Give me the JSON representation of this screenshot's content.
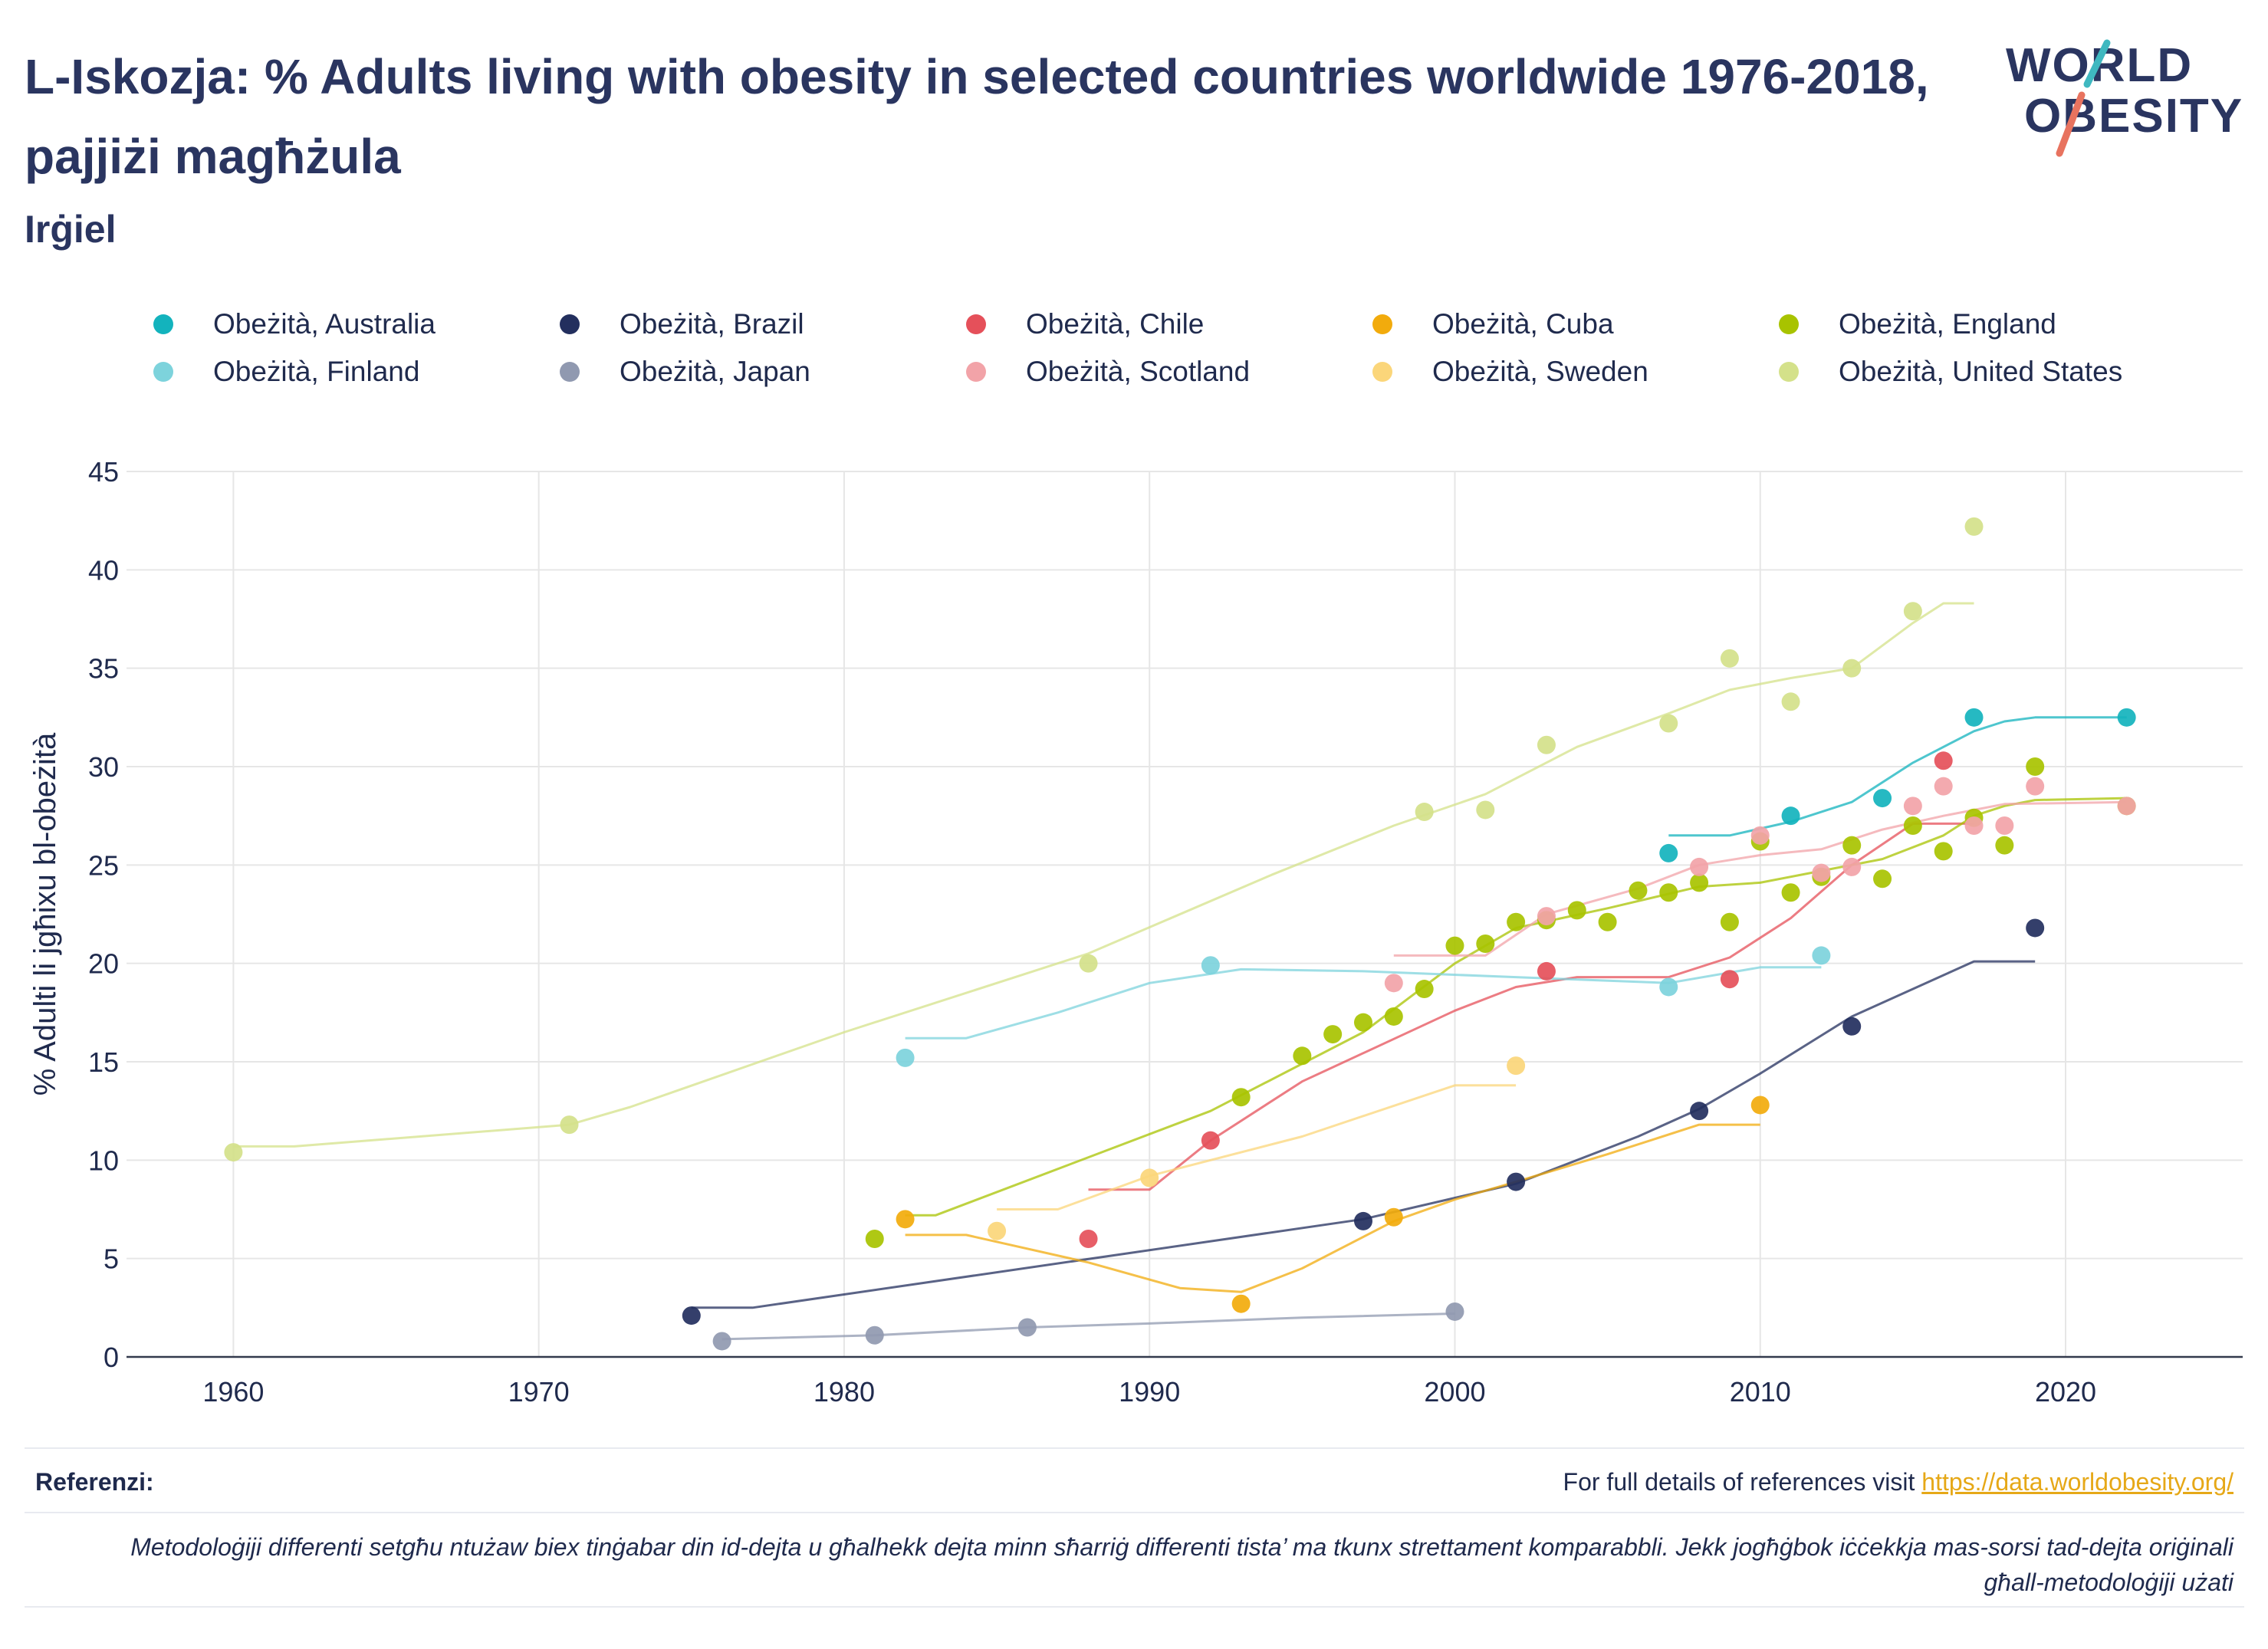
{
  "header": {
    "title": "L-Iskozja: % Adults living with obesity in selected countries worldwide 1976-2018, pajjiżi magħżula",
    "subtitle": "Irġiel"
  },
  "logo": {
    "line1": "WORLD",
    "line2": "OBESITY",
    "accent1": "#3fb8c0",
    "accent2": "#e8735f"
  },
  "footer": {
    "references_label": "Referenzi:",
    "references_text": "For full details of references visit ",
    "references_link": "https://data.worldobesity.org/",
    "methodology": "Metodoloġiji differenti setgħu ntużaw biex tinġabar din id-dejta u għalhekk dejta minn sħarriġ differenti tista’ ma tkunx strettament komparabbli. Jekk jogħġbok iċċekkja mas-sorsi tad-dejta oriġinali għall-metodoloġiji użati"
  },
  "chart_data": {
    "type": "scatter",
    "ylabel": "% Adulti li jgħixu bl-obeżità",
    "xlabel": "",
    "xlim": [
      1956.5,
      2025.8
    ],
    "ylim": [
      0,
      45
    ],
    "x_ticks": [
      1960,
      1970,
      1980,
      1990,
      2000,
      2010,
      2020
    ],
    "y_ticks": [
      0,
      5,
      10,
      15,
      20,
      25,
      30,
      35,
      40,
      45
    ],
    "grid": true,
    "legend_position": "top",
    "series": [
      {
        "name": "Obeżità, Australia",
        "color": "#13b3bd",
        "points": [
          [
            2007,
            25.6
          ],
          [
            2011,
            27.5
          ],
          [
            2014,
            28.4
          ],
          [
            2017,
            32.5
          ],
          [
            2022,
            32.5
          ]
        ],
        "trend": [
          [
            2007,
            26.5
          ],
          [
            2009,
            26.5
          ],
          [
            2011,
            27.2
          ],
          [
            2013,
            28.2
          ],
          [
            2015,
            30.2
          ],
          [
            2017,
            31.8
          ],
          [
            2018,
            32.3
          ],
          [
            2019,
            32.5
          ],
          [
            2022,
            32.5
          ]
        ]
      },
      {
        "name": "Obeżità, Brazil",
        "color": "#232f5e",
        "points": [
          [
            1975,
            2.1
          ],
          [
            1997,
            6.9
          ],
          [
            2002,
            8.9
          ],
          [
            2008,
            12.5
          ],
          [
            2013,
            16.8
          ],
          [
            2019,
            21.8
          ]
        ],
        "trend": [
          [
            1975,
            2.5
          ],
          [
            1977,
            2.5
          ],
          [
            1997,
            7.0
          ],
          [
            2002,
            8.8
          ],
          [
            2006,
            11.2
          ],
          [
            2008,
            12.6
          ],
          [
            2010,
            14.4
          ],
          [
            2013,
            17.3
          ],
          [
            2017,
            20.1
          ],
          [
            2019,
            20.1
          ]
        ]
      },
      {
        "name": "Obeżità, Chile",
        "color": "#e5505a",
        "points": [
          [
            1988,
            6.0
          ],
          [
            1992,
            11.0
          ],
          [
            2003,
            19.6
          ],
          [
            2009,
            19.2
          ],
          [
            2016,
            30.3
          ]
        ],
        "trend": [
          [
            1988,
            8.5
          ],
          [
            1990,
            8.5
          ],
          [
            1992,
            11.0
          ],
          [
            1995,
            14.0
          ],
          [
            2000,
            17.6
          ],
          [
            2002,
            18.8
          ],
          [
            2004,
            19.3
          ],
          [
            2007,
            19.3
          ],
          [
            2009,
            20.3
          ],
          [
            2011,
            22.3
          ],
          [
            2013,
            25.0
          ],
          [
            2015,
            27.1
          ],
          [
            2017,
            27.1
          ]
        ]
      },
      {
        "name": "Obeżità, Cuba",
        "color": "#f2ab0c",
        "points": [
          [
            1982,
            7.0
          ],
          [
            1993,
            2.7
          ],
          [
            1998,
            7.1
          ],
          [
            2010,
            12.8
          ]
        ],
        "trend": [
          [
            1982,
            6.2
          ],
          [
            1984,
            6.2
          ],
          [
            1988,
            4.8
          ],
          [
            1991,
            3.5
          ],
          [
            1993,
            3.3
          ],
          [
            1995,
            4.5
          ],
          [
            1998,
            6.9
          ],
          [
            2000,
            8.0
          ],
          [
            2002,
            8.9
          ],
          [
            2005,
            10.3
          ],
          [
            2008,
            11.8
          ],
          [
            2010,
            11.8
          ]
        ]
      },
      {
        "name": "Obeżità, England",
        "color": "#a8c300",
        "points": [
          [
            1981,
            6.0
          ],
          [
            1993,
            13.2
          ],
          [
            1995,
            15.3
          ],
          [
            1996,
            16.4
          ],
          [
            1997,
            17.0
          ],
          [
            1998,
            17.3
          ],
          [
            1999,
            18.7
          ],
          [
            2000,
            20.9
          ],
          [
            2001,
            21.0
          ],
          [
            2002,
            22.1
          ],
          [
            2003,
            22.2
          ],
          [
            2004,
            22.7
          ],
          [
            2005,
            22.1
          ],
          [
            2006,
            23.7
          ],
          [
            2007,
            23.6
          ],
          [
            2008,
            24.1
          ],
          [
            2009,
            22.1
          ],
          [
            2010,
            26.2
          ],
          [
            2011,
            23.6
          ],
          [
            2012,
            24.4
          ],
          [
            2013,
            26.0
          ],
          [
            2014,
            24.3
          ],
          [
            2015,
            27.0
          ],
          [
            2016,
            25.7
          ],
          [
            2017,
            27.4
          ],
          [
            2018,
            26.0
          ],
          [
            2019,
            30.0
          ],
          [
            2022,
            28.0
          ]
        ],
        "trend": [
          [
            1982,
            7.2
          ],
          [
            1983,
            7.2
          ],
          [
            1992,
            12.5
          ],
          [
            1997,
            16.5
          ],
          [
            2000,
            20.0
          ],
          [
            2002,
            21.8
          ],
          [
            2005,
            22.8
          ],
          [
            2008,
            23.9
          ],
          [
            2010,
            24.1
          ],
          [
            2012,
            24.7
          ],
          [
            2014,
            25.3
          ],
          [
            2016,
            26.5
          ],
          [
            2017,
            27.5
          ],
          [
            2018,
            28.0
          ],
          [
            2019,
            28.3
          ],
          [
            2022,
            28.4
          ]
        ]
      },
      {
        "name": "Obeżità, Finland",
        "color": "#7dd3dc",
        "points": [
          [
            1982,
            15.2
          ],
          [
            1992,
            19.9
          ],
          [
            2007,
            18.8
          ],
          [
            2012,
            20.4
          ]
        ],
        "trend": [
          [
            1982,
            16.2
          ],
          [
            1984,
            16.2
          ],
          [
            1987,
            17.5
          ],
          [
            1990,
            19.0
          ],
          [
            1993,
            19.7
          ],
          [
            1997,
            19.6
          ],
          [
            2002,
            19.3
          ],
          [
            2007,
            19.0
          ],
          [
            2010,
            19.8
          ],
          [
            2012,
            19.8
          ]
        ]
      },
      {
        "name": "Obeżità, Japan",
        "color": "#9099b0",
        "points": [
          [
            1976,
            0.8
          ],
          [
            1981,
            1.1
          ],
          [
            1986,
            1.5
          ],
          [
            2000,
            2.3
          ]
        ],
        "trend": [
          [
            1976,
            0.9
          ],
          [
            1981,
            1.1
          ],
          [
            1986,
            1.5
          ],
          [
            1990,
            1.7
          ],
          [
            1995,
            2.0
          ],
          [
            2000,
            2.2
          ]
        ]
      },
      {
        "name": "Obeżità, Scotland",
        "color": "#f2a3a8",
        "points": [
          [
            1998,
            19.0
          ],
          [
            2003,
            22.4
          ],
          [
            2008,
            24.9
          ],
          [
            2010,
            26.5
          ],
          [
            2012,
            24.6
          ],
          [
            2013,
            24.9
          ],
          [
            2015,
            28.0
          ],
          [
            2016,
            29.0
          ],
          [
            2017,
            27.0
          ],
          [
            2018,
            27.0
          ],
          [
            2019,
            29.0
          ],
          [
            2022,
            28.0
          ]
        ],
        "trend": [
          [
            1998,
            20.4
          ],
          [
            2001,
            20.4
          ],
          [
            2003,
            22.5
          ],
          [
            2006,
            23.8
          ],
          [
            2008,
            25.0
          ],
          [
            2010,
            25.5
          ],
          [
            2012,
            25.8
          ],
          [
            2014,
            26.8
          ],
          [
            2016,
            27.5
          ],
          [
            2018,
            28.1
          ],
          [
            2022,
            28.2
          ]
        ]
      },
      {
        "name": "Obeżità, Sweden",
        "color": "#fbd67a",
        "points": [
          [
            1985,
            6.4
          ],
          [
            1990,
            9.1
          ],
          [
            2002,
            14.8
          ]
        ],
        "trend": [
          [
            1985,
            7.5
          ],
          [
            1987,
            7.5
          ],
          [
            1990,
            9.2
          ],
          [
            1995,
            11.2
          ],
          [
            2000,
            13.8
          ],
          [
            2002,
            13.8
          ]
        ]
      },
      {
        "name": "Obeżità, United States",
        "color": "#d4e18a",
        "points": [
          [
            1960,
            10.4
          ],
          [
            1971,
            11.8
          ],
          [
            1988,
            20.0
          ],
          [
            1999,
            27.7
          ],
          [
            2001,
            27.8
          ],
          [
            2003,
            31.1
          ],
          [
            2007,
            32.2
          ],
          [
            2009,
            35.5
          ],
          [
            2011,
            33.3
          ],
          [
            2013,
            35.0
          ],
          [
            2015,
            37.9
          ],
          [
            2017,
            42.2
          ]
        ],
        "trend": [
          [
            1960,
            10.7
          ],
          [
            1962,
            10.7
          ],
          [
            1971,
            11.8
          ],
          [
            1973,
            12.7
          ],
          [
            1980,
            16.5
          ],
          [
            1988,
            20.5
          ],
          [
            1994,
            24.5
          ],
          [
            1998,
            27.0
          ],
          [
            2001,
            28.6
          ],
          [
            2004,
            31.0
          ],
          [
            2007,
            32.7
          ],
          [
            2009,
            33.9
          ],
          [
            2011,
            34.5
          ],
          [
            2013,
            35.0
          ],
          [
            2015,
            37.3
          ],
          [
            2016,
            38.3
          ],
          [
            2017,
            38.3
          ]
        ]
      }
    ]
  }
}
